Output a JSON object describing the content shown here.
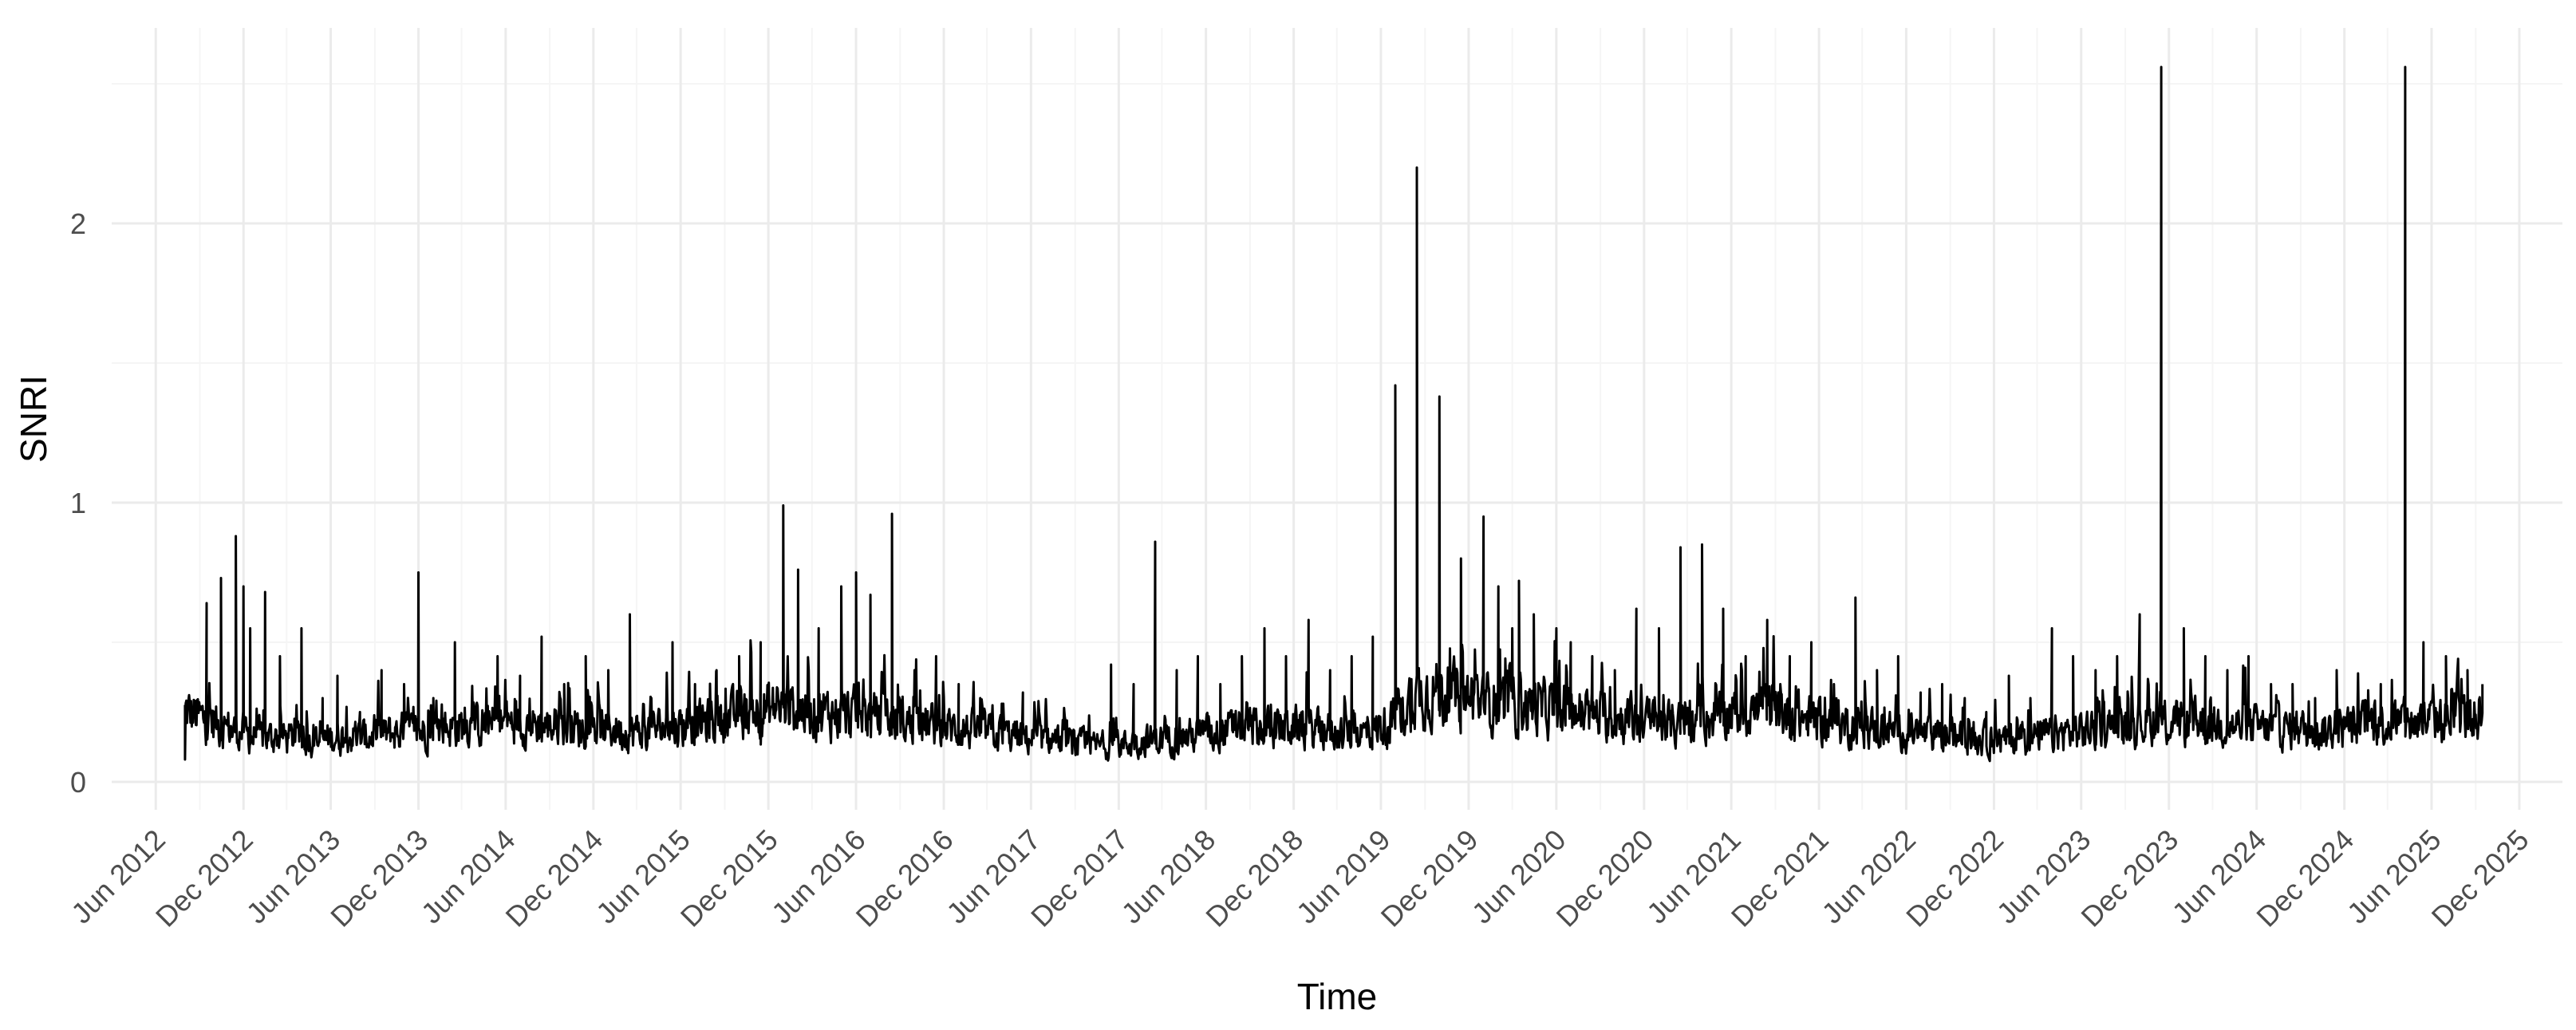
{
  "chart_data": {
    "type": "line",
    "title": "",
    "xlabel": "Time",
    "ylabel": "SNRI",
    "x_tick_labels": [
      "Jun 2012",
      "Dec 2012",
      "Jun 2013",
      "Dec 2013",
      "Jun 2014",
      "Dec 2014",
      "Jun 2015",
      "Dec 2015",
      "Jun 2016",
      "Dec 2016",
      "Jun 2017",
      "Dec 2017",
      "Jun 2018",
      "Dec 2018",
      "Jun 2019",
      "Dec 2019",
      "Jun 2020",
      "Dec 2020",
      "Jun 2021",
      "Dec 2021",
      "Jun 2022",
      "Dec 2022",
      "Jun 2023",
      "Dec 2023",
      "Jun 2024",
      "Dec 2024",
      "Jun 2025",
      "Dec 2025"
    ],
    "x_ticks": [
      "2012-06-01",
      "2012-12-01",
      "2013-06-01",
      "2013-12-01",
      "2014-06-01",
      "2014-12-01",
      "2015-06-01",
      "2015-12-01",
      "2016-06-01",
      "2016-12-01",
      "2017-06-01",
      "2017-12-01",
      "2018-06-01",
      "2018-12-01",
      "2019-06-01",
      "2019-12-01",
      "2020-06-01",
      "2020-12-01",
      "2021-06-01",
      "2021-12-01",
      "2022-06-01",
      "2022-12-01",
      "2023-06-01",
      "2023-12-01",
      "2024-06-01",
      "2024-12-01",
      "2025-06-01",
      "2025-12-01"
    ],
    "y_tick_labels": [
      "0",
      "1",
      "2"
    ],
    "y_ticks": [
      0,
      1,
      2
    ],
    "xlim": [
      "2012-03-01",
      "2026-03-01"
    ],
    "ylim": [
      -0.1,
      2.7
    ],
    "grid": true,
    "legend": "none",
    "colors": {
      "line": "#000000",
      "grid_major": "#ebebeb",
      "grid_minor": "#f5f5f5",
      "text": "#4d4d4d"
    },
    "series": [
      {
        "x": [
          "2012-08-01",
          "2012-09-15",
          "2012-10-15",
          "2012-11-15",
          "2012-12-01",
          "2012-12-15",
          "2013-01-15",
          "2013-02-15",
          "2013-04-01",
          "2013-05-15",
          "2013-06-15",
          "2013-08-01",
          "2013-09-15",
          "2013-11-01",
          "2013-12-01",
          "2014-01-01",
          "2014-02-15",
          "2014-04-01",
          "2014-05-15",
          "2014-07-01",
          "2014-08-15",
          "2014-10-01",
          "2014-11-15",
          "2015-01-01",
          "2015-02-15",
          "2015-04-01",
          "2015-05-15",
          "2015-07-01",
          "2015-08-15",
          "2015-10-01",
          "2015-11-15",
          "2016-01-01",
          "2016-02-01",
          "2016-03-15",
          "2016-05-01",
          "2016-06-01",
          "2016-07-01",
          "2016-08-15",
          "2016-10-01",
          "2016-11-15",
          "2017-01-01",
          "2017-02-15",
          "2017-04-01",
          "2017-05-15",
          "2017-07-01",
          "2017-08-15",
          "2017-10-01",
          "2017-11-15",
          "2018-01-01",
          "2018-02-15",
          "2018-04-01",
          "2018-05-15",
          "2018-07-01",
          "2018-08-15",
          "2018-10-01",
          "2018-11-15",
          "2019-01-01",
          "2019-02-15",
          "2019-04-01",
          "2019-05-15",
          "2019-07-01",
          "2019-08-15",
          "2019-10-01",
          "2019-11-15",
          "2020-01-01",
          "2020-02-01",
          "2020-03-01",
          "2020-03-15",
          "2020-04-15",
          "2020-06-01",
          "2020-07-01",
          "2020-08-15",
          "2020-10-01",
          "2020-11-15",
          "2021-01-01",
          "2021-02-15",
          "2021-04-01",
          "2021-05-15",
          "2021-07-01",
          "2021-08-15",
          "2021-10-01",
          "2021-11-15",
          "2022-01-01",
          "2022-02-15",
          "2022-04-01",
          "2022-05-15",
          "2022-07-01",
          "2022-08-15",
          "2022-10-01",
          "2022-11-15",
          "2023-01-01",
          "2023-02-15",
          "2023-04-01",
          "2023-05-15",
          "2023-07-01",
          "2023-08-15",
          "2023-10-01",
          "2023-11-15",
          "2024-01-01",
          "2024-02-15",
          "2024-04-01",
          "2024-05-15",
          "2024-07-01",
          "2024-08-15",
          "2024-10-01",
          "2024-11-15",
          "2025-01-01",
          "2025-02-15",
          "2025-04-07",
          "2025-05-15",
          "2025-07-01",
          "2025-08-15",
          "2025-09-15"
        ],
        "y": [
          0.08,
          0.64,
          0.73,
          0.88,
          0.7,
          0.55,
          0.68,
          0.45,
          0.55,
          0.3,
          0.38,
          0.25,
          0.4,
          0.35,
          0.75,
          0.3,
          0.5,
          0.28,
          0.45,
          0.38,
          0.52,
          0.35,
          0.45,
          0.4,
          0.6,
          0.3,
          0.5,
          0.35,
          0.4,
          0.45,
          0.5,
          0.99,
          0.76,
          0.55,
          0.7,
          0.75,
          0.67,
          0.96,
          0.4,
          0.45,
          0.35,
          0.3,
          0.28,
          0.32,
          0.25,
          0.22,
          0.2,
          0.42,
          0.35,
          0.86,
          0.4,
          0.45,
          0.35,
          0.45,
          0.55,
          0.45,
          0.58,
          0.4,
          0.45,
          0.52,
          1.42,
          2.2,
          1.38,
          0.8,
          0.95,
          0.7,
          0.55,
          0.72,
          0.6,
          0.55,
          0.5,
          0.45,
          0.4,
          0.62,
          0.55,
          0.84,
          0.85,
          0.62,
          0.45,
          0.58,
          0.45,
          0.5,
          0.35,
          0.66,
          0.4,
          0.45,
          0.32,
          0.35,
          0.3,
          0.25,
          0.38,
          0.3,
          0.55,
          0.45,
          0.4,
          0.45,
          0.6,
          2.56,
          0.55,
          0.45,
          0.4,
          0.45,
          0.35,
          0.35,
          0.3,
          0.4,
          0.25,
          0.35,
          2.56,
          0.5,
          0.45,
          0.4,
          0.35
        ],
        "base": [
          0.25,
          0.22,
          0.2,
          0.18,
          0.18,
          0.16,
          0.16,
          0.16,
          0.15,
          0.15,
          0.16,
          0.16,
          0.17,
          0.18,
          0.18,
          0.19,
          0.2,
          0.2,
          0.21,
          0.21,
          0.2,
          0.2,
          0.19,
          0.19,
          0.18,
          0.19,
          0.2,
          0.21,
          0.22,
          0.24,
          0.26,
          0.26,
          0.26,
          0.25,
          0.24,
          0.24,
          0.23,
          0.22,
          0.21,
          0.2,
          0.19,
          0.18,
          0.17,
          0.16,
          0.15,
          0.14,
          0.13,
          0.13,
          0.14,
          0.15,
          0.16,
          0.17,
          0.18,
          0.19,
          0.19,
          0.2,
          0.19,
          0.18,
          0.17,
          0.18,
          0.22,
          0.32,
          0.32,
          0.3,
          0.29,
          0.28,
          0.28,
          0.28,
          0.27,
          0.26,
          0.25,
          0.24,
          0.23,
          0.22,
          0.21,
          0.2,
          0.22,
          0.24,
          0.26,
          0.25,
          0.24,
          0.22,
          0.21,
          0.2,
          0.19,
          0.18,
          0.17,
          0.16,
          0.16,
          0.15,
          0.15,
          0.16,
          0.17,
          0.18,
          0.19,
          0.2,
          0.21,
          0.21,
          0.21,
          0.21,
          0.2,
          0.2,
          0.19,
          0.19,
          0.18,
          0.19,
          0.2,
          0.21,
          0.21,
          0.22,
          0.22,
          0.23,
          0.24
        ]
      }
    ]
  }
}
